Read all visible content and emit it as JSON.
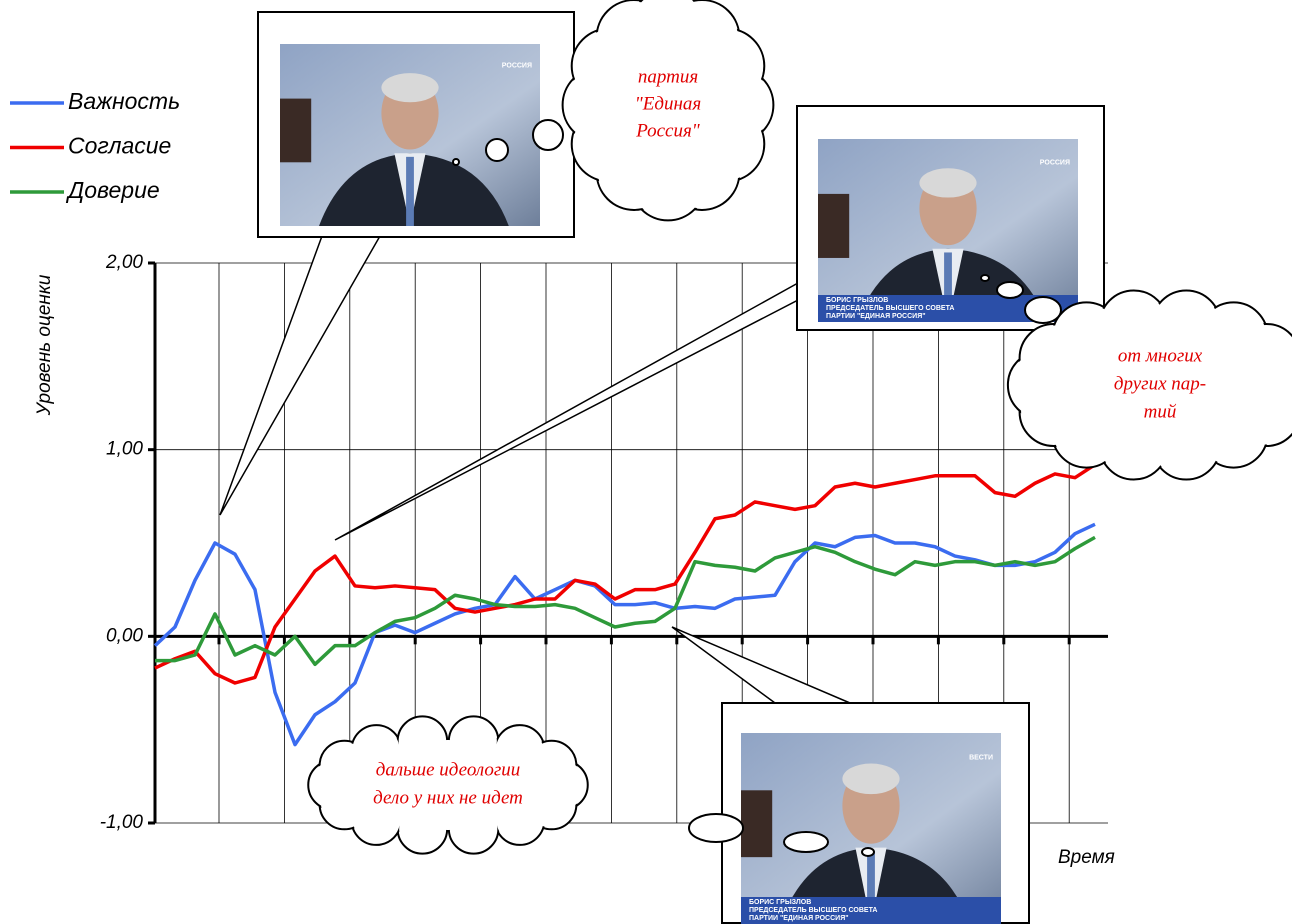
{
  "chart_data": {
    "type": "line",
    "y_label": "Уровень оценки",
    "x_label": "Время",
    "ylim": [
      -1,
      2
    ],
    "yticks": [
      {
        "value": -1,
        "label": "-1,00"
      },
      {
        "value": 0,
        "label": "0,00"
      },
      {
        "value": 1,
        "label": "1,00"
      },
      {
        "value": 2,
        "label": "2,00"
      }
    ],
    "grid": true,
    "legend": "top-left",
    "series": [
      {
        "name": "Важность",
        "color": "#3b6cf0",
        "values": [
          -0.05,
          0.05,
          0.3,
          0.5,
          0.44,
          0.25,
          -0.3,
          -0.58,
          -0.42,
          -0.35,
          -0.25,
          0.02,
          0.06,
          0.02,
          0.07,
          0.12,
          0.15,
          0.17,
          0.32,
          0.2,
          0.25,
          0.3,
          0.27,
          0.17,
          0.17,
          0.18,
          0.15,
          0.16,
          0.15,
          0.2,
          0.21,
          0.22,
          0.4,
          0.5,
          0.48,
          0.53,
          0.54,
          0.5,
          0.5,
          0.48,
          0.43,
          0.41,
          0.38,
          0.38,
          0.4,
          0.45,
          0.55,
          0.6
        ]
      },
      {
        "name": "Согласие",
        "color": "#f00000",
        "values": [
          -0.17,
          -0.12,
          -0.08,
          -0.2,
          -0.25,
          -0.22,
          0.05,
          0.2,
          0.35,
          0.43,
          0.27,
          0.26,
          0.27,
          0.26,
          0.25,
          0.15,
          0.13,
          0.15,
          0.17,
          0.2,
          0.2,
          0.3,
          0.28,
          0.2,
          0.25,
          0.25,
          0.28,
          0.45,
          0.63,
          0.65,
          0.72,
          0.7,
          0.68,
          0.7,
          0.8,
          0.82,
          0.8,
          0.82,
          0.84,
          0.86,
          0.86,
          0.86,
          0.77,
          0.75,
          0.82,
          0.87,
          0.85,
          0.92
        ]
      },
      {
        "name": "Доверие",
        "color": "#2e9a3a",
        "values": [
          -0.13,
          -0.13,
          -0.1,
          0.12,
          -0.1,
          -0.05,
          -0.1,
          0.0,
          -0.15,
          -0.05,
          -0.05,
          0.02,
          0.08,
          0.1,
          0.15,
          0.22,
          0.2,
          0.17,
          0.16,
          0.16,
          0.17,
          0.15,
          0.1,
          0.05,
          0.07,
          0.08,
          0.15,
          0.4,
          0.38,
          0.37,
          0.35,
          0.42,
          0.45,
          0.48,
          0.45,
          0.4,
          0.36,
          0.33,
          0.4,
          0.38,
          0.4,
          0.4,
          0.38,
          0.4,
          0.38,
          0.4,
          0.47,
          0.53
        ]
      }
    ],
    "annotations": [
      {
        "lines": [
          "партия",
          "\"Единая",
          "Россия\""
        ]
      },
      {
        "lines": [
          "от многих",
          "других пар-",
          "тий"
        ]
      },
      {
        "lines": [
          "дальше идеологии",
          "дело у них не идет"
        ]
      }
    ],
    "frames": [
      {
        "logo": "РОССИЯ"
      },
      {
        "logo": "РОССИЯ",
        "caption": [
          "БОРИС ГРЫЗЛОВ",
          "ПРЕДСЕДАТЕЛЬ ВЫСШЕГО СОВЕТА",
          "ПАРТИИ \"ЕДИНАЯ РОССИЯ\""
        ]
      },
      {
        "logo": "ВЕСТИ",
        "caption": [
          "БОРИС ГРЫЗЛОВ",
          "ПРЕДСЕДАТЕЛЬ ВЫСШЕГО СОВЕТА",
          "ПАРТИИ \"ЕДИНАЯ РОССИЯ\""
        ]
      }
    ]
  }
}
